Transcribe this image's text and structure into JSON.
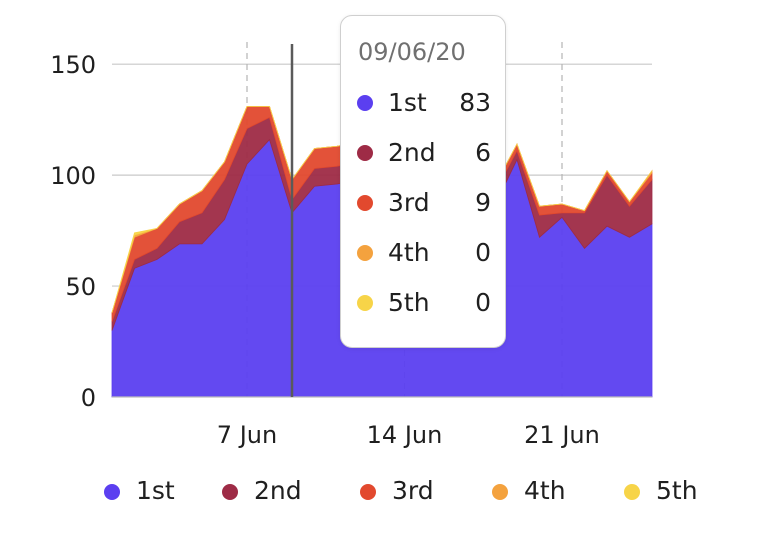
{
  "chart_data": {
    "type": "area",
    "stacked": true,
    "x": [
      1,
      2,
      3,
      4,
      5,
      6,
      7,
      8,
      9,
      10,
      11,
      12,
      13,
      14,
      15,
      16,
      17,
      18,
      19,
      20,
      21,
      22,
      23,
      24,
      25
    ],
    "x_ticks": [
      {
        "x": 7,
        "label": "7 Jun"
      },
      {
        "x": 14,
        "label": "14 Jun"
      },
      {
        "x": 21,
        "label": "21 Jun"
      }
    ],
    "ylim": [
      0,
      160
    ],
    "y_ticks": [
      0,
      50,
      100,
      150
    ],
    "series": [
      {
        "name": "1st",
        "color": "#5b3ff0",
        "values": [
          30,
          58,
          62,
          69,
          69,
          80,
          105,
          116,
          83,
          95,
          96,
          98,
          98,
          100,
          98,
          94,
          90,
          86,
          107,
          72,
          81,
          67,
          77,
          72,
          78
        ]
      },
      {
        "name": "2nd",
        "color": "#9e2b46",
        "values": [
          4,
          4,
          5,
          10,
          14,
          18,
          16,
          10,
          6,
          8,
          8,
          8,
          8,
          8,
          8,
          8,
          7,
          6,
          4,
          10,
          2,
          16,
          23,
          14,
          20
        ]
      },
      {
        "name": "3rd",
        "color": "#e2492e",
        "values": [
          4,
          10,
          9,
          8,
          10,
          8,
          10,
          5,
          9,
          9,
          9,
          9,
          9,
          9,
          9,
          9,
          4,
          3,
          3,
          4,
          4,
          1,
          2,
          2,
          3
        ]
      },
      {
        "name": "4th",
        "color": "#f4a23e",
        "values": [
          0,
          1,
          0,
          0,
          0,
          0,
          0,
          0,
          0,
          0,
          0,
          0,
          0,
          0,
          0,
          0,
          0,
          0,
          0,
          0,
          0,
          0,
          0,
          0,
          1
        ]
      },
      {
        "name": "5th",
        "color": "#f7d448",
        "values": [
          0,
          1,
          0,
          0,
          0,
          0,
          0,
          0,
          0,
          0,
          0,
          0,
          0,
          0,
          0,
          0,
          0,
          0,
          0,
          0,
          0,
          0,
          0,
          0,
          0
        ]
      }
    ],
    "crosshair_x": 9,
    "grid": true,
    "legend": "bottom"
  },
  "tooltip": {
    "title": "09/06/20",
    "rows": [
      {
        "name": "1st",
        "value": "83",
        "color": "#5b3ff0"
      },
      {
        "name": "2nd",
        "value": "6",
        "color": "#9e2b46"
      },
      {
        "name": "3rd",
        "value": "9",
        "color": "#e2492e"
      },
      {
        "name": "4th",
        "value": "0",
        "color": "#f4a23e"
      },
      {
        "name": "5th",
        "value": "0",
        "color": "#f7d448"
      }
    ]
  },
  "legend": [
    {
      "name": "1st",
      "color": "#5b3ff0"
    },
    {
      "name": "2nd",
      "color": "#9e2b46"
    },
    {
      "name": "3rd",
      "color": "#e2492e"
    },
    {
      "name": "4th",
      "color": "#f4a23e"
    },
    {
      "name": "5th",
      "color": "#f7d448"
    }
  ]
}
